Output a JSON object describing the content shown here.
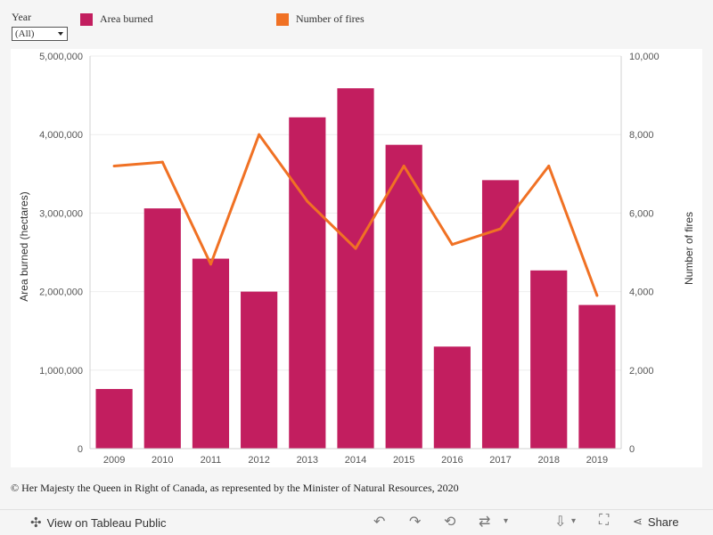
{
  "filter": {
    "label": "Year",
    "selected": "(All)"
  },
  "legend": [
    {
      "label": "Area burned",
      "color": "#c21e5f"
    },
    {
      "label": "Number of fires",
      "color": "#f07124"
    }
  ],
  "chart_data": {
    "type": "bar",
    "categories": [
      "2009",
      "2010",
      "2011",
      "2012",
      "2013",
      "2014",
      "2015",
      "2016",
      "2017",
      "2018",
      "2019"
    ],
    "series": [
      {
        "name": "Area burned",
        "type": "bar",
        "axis": "left",
        "color": "#c21e5f",
        "values": [
          760000,
          3060000,
          2420000,
          2000000,
          4220000,
          4590000,
          3870000,
          1300000,
          3420000,
          2270000,
          1830000
        ]
      },
      {
        "name": "Number of fires",
        "type": "line",
        "axis": "right",
        "color": "#f07124",
        "values": [
          7200,
          7300,
          4700,
          8000,
          6300,
          5100,
          7200,
          5200,
          5600,
          7200,
          3900
        ]
      }
    ],
    "ylabel_left": "Area burned (hectares)",
    "ylabel_right": "Number of fires",
    "ylim_left": [
      0,
      5000000
    ],
    "ylim_right": [
      0,
      10000
    ],
    "yticks_left": [
      "0",
      "1,000,000",
      "2,000,000",
      "3,000,000",
      "4,000,000",
      "5,000,000"
    ],
    "yticks_right": [
      "0",
      "2,000",
      "4,000",
      "6,000",
      "8,000",
      "10,000"
    ],
    "grid": true
  },
  "footer": {
    "copyright": "© Her Majesty the Queen in Right of Canada, as represented by the Minister of Natural Resources, 2020"
  },
  "toolbar": {
    "view_label": "View on Tableau Public",
    "share_label": "Share",
    "icons": [
      "undo-icon",
      "redo-icon",
      "revert-icon",
      "refresh-icon",
      "download-icon",
      "fullscreen-icon",
      "share-icon"
    ]
  }
}
